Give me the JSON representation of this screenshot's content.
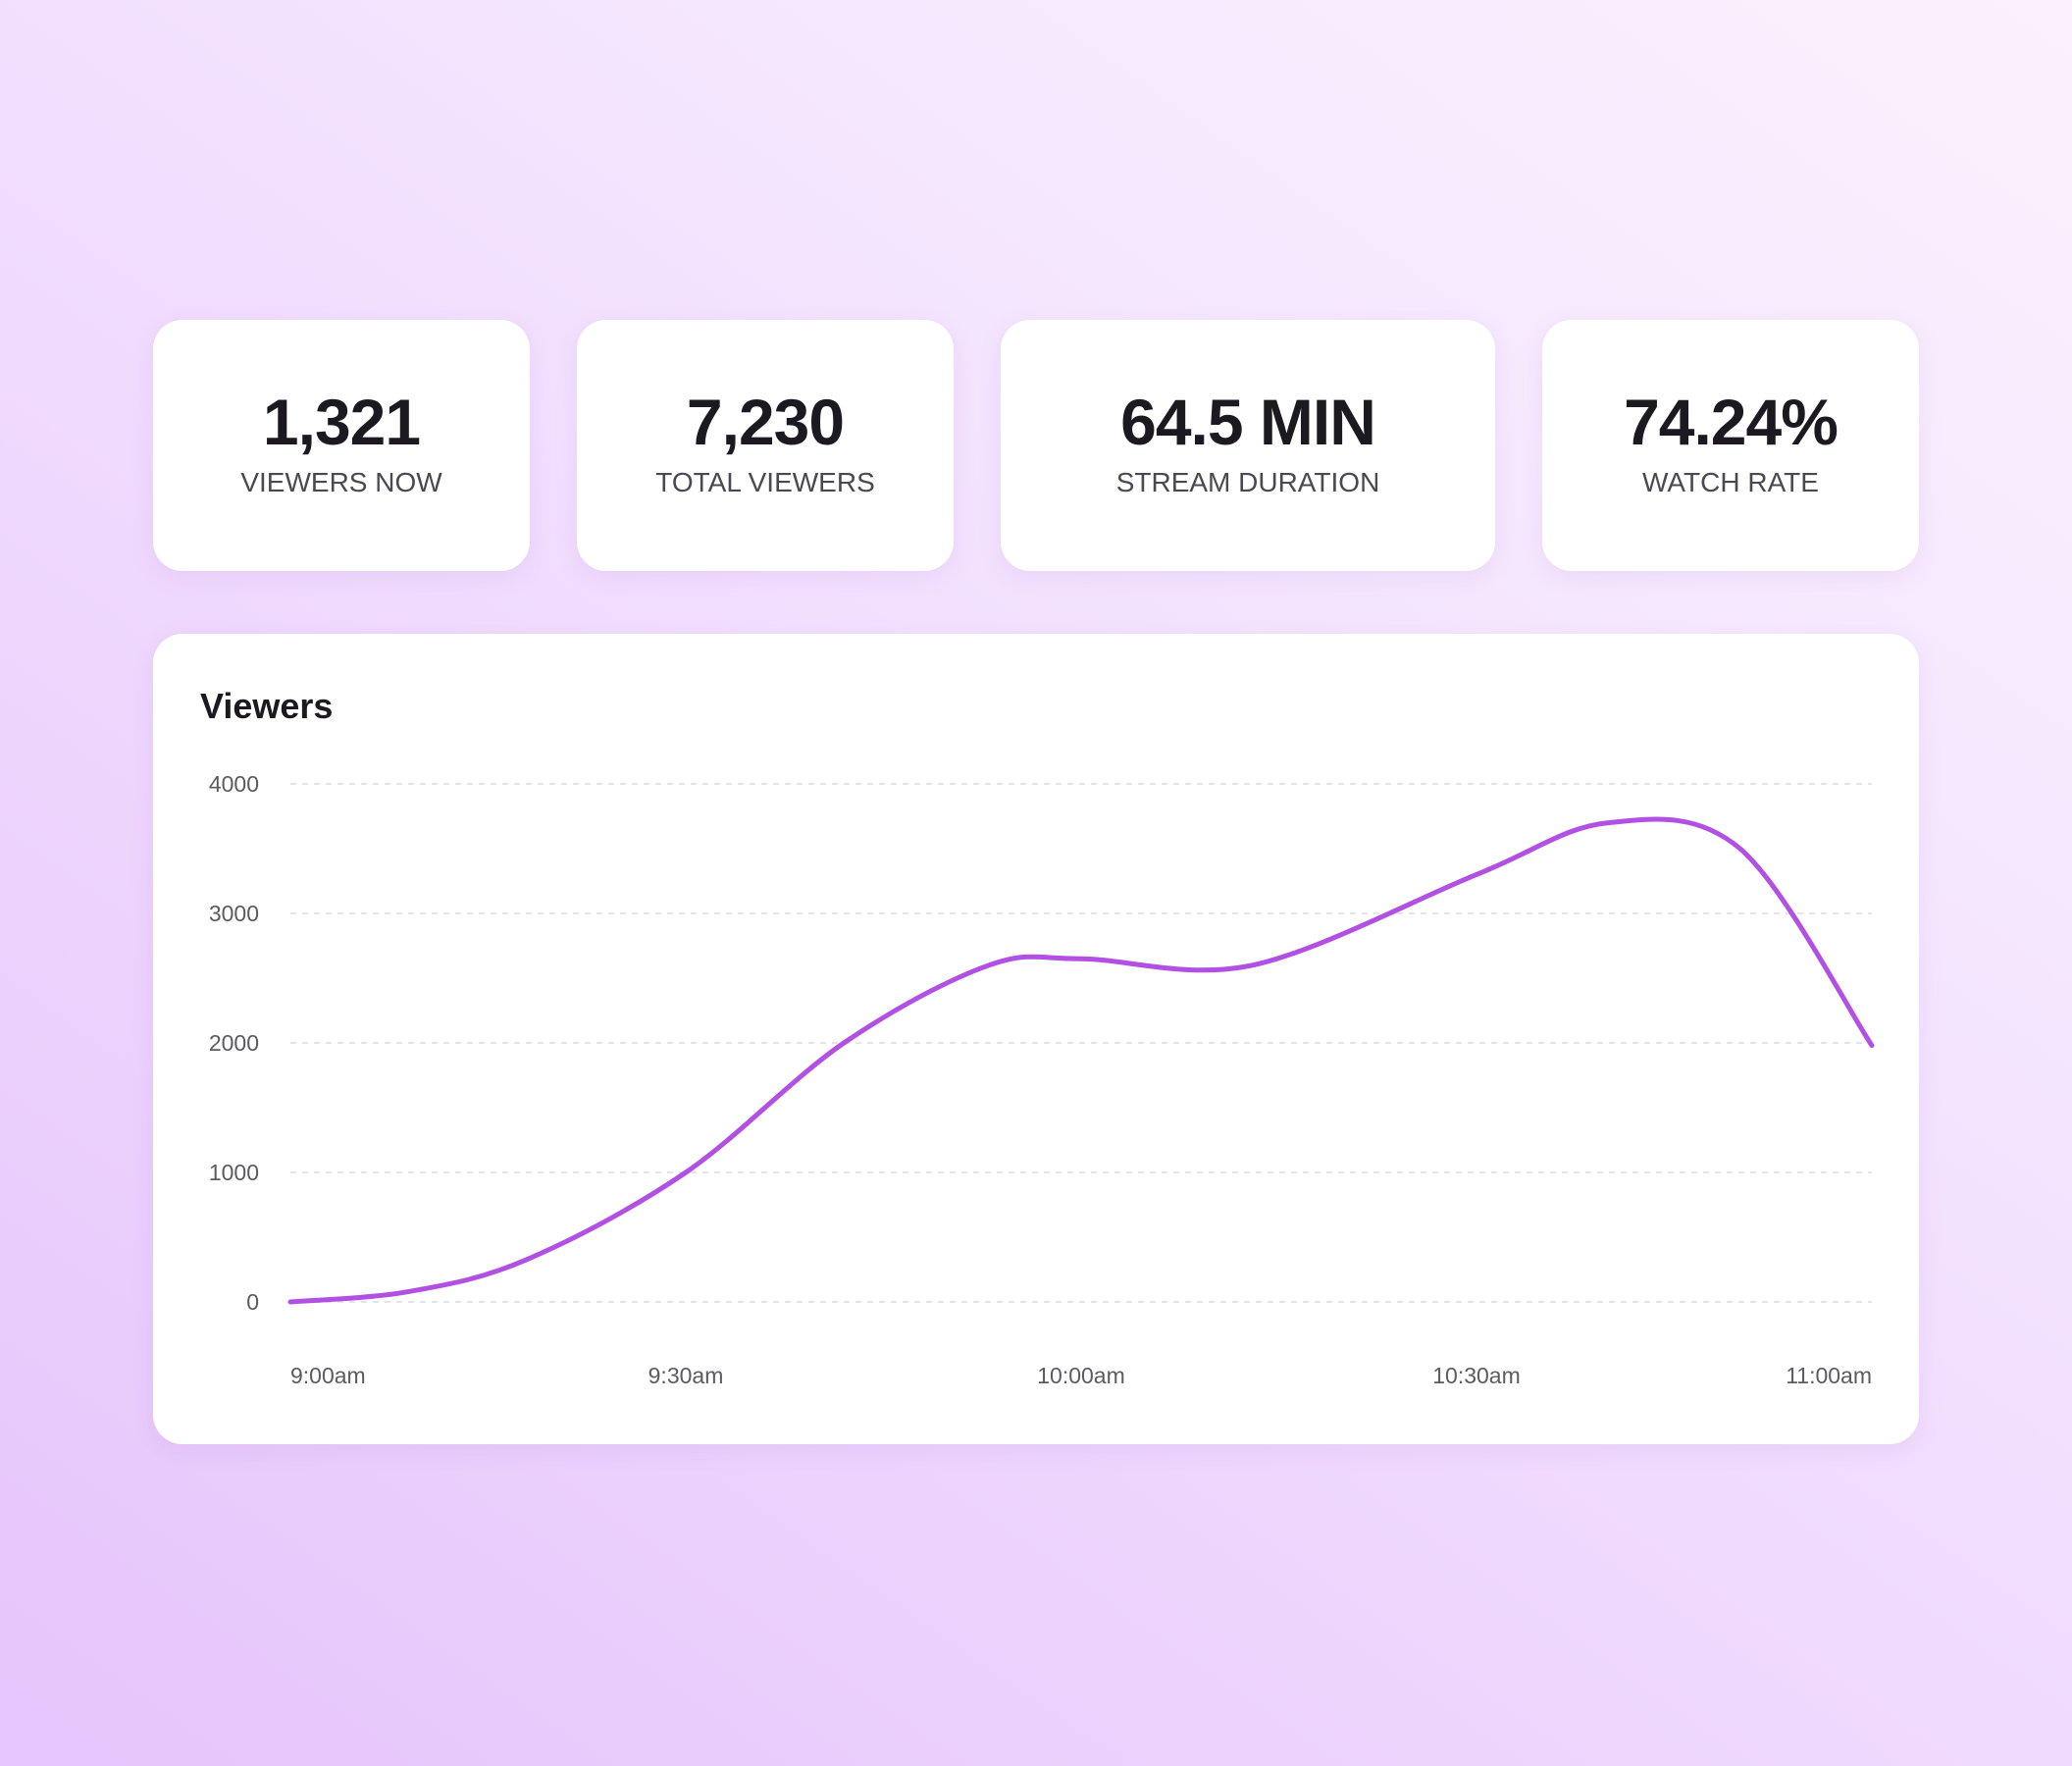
{
  "stats": [
    {
      "value": "1,321",
      "label": "VIEWERS NOW"
    },
    {
      "value": "7,230",
      "label": "TOTAL VIEWERS"
    },
    {
      "value": "64.5 MIN",
      "label": "STREAM DURATION"
    },
    {
      "value": "74.24%",
      "label": "WATCH RATE"
    }
  ],
  "chart_data": {
    "type": "line",
    "title": "Viewers",
    "x_unit": "time",
    "x_ticks": [
      "9:00am",
      "9:30am",
      "10:00am",
      "10:30am",
      "11:00am"
    ],
    "y_ticks": [
      "0",
      "1000",
      "2000",
      "3000",
      "4000"
    ],
    "ylim": [
      0,
      4000
    ],
    "xlim": [
      "9:00am",
      "11:00am"
    ],
    "grid": true,
    "series": [
      {
        "color": "#b150e3",
        "points": [
          {
            "x": "9:00am",
            "y": 0
          },
          {
            "x": "9:09am",
            "y": 80
          },
          {
            "x": "9:18am",
            "y": 330
          },
          {
            "x": "9:30am",
            "y": 1000
          },
          {
            "x": "9:42am",
            "y": 2000
          },
          {
            "x": "9:53am",
            "y": 2600
          },
          {
            "x": "10:00am",
            "y": 2650
          },
          {
            "x": "10:13am",
            "y": 2600
          },
          {
            "x": "10:30am",
            "y": 3300
          },
          {
            "x": "10:40am",
            "y": 3700
          },
          {
            "x": "10:50am",
            "y": 3500
          },
          {
            "x": "11:00am",
            "y": 1980
          }
        ]
      }
    ]
  }
}
